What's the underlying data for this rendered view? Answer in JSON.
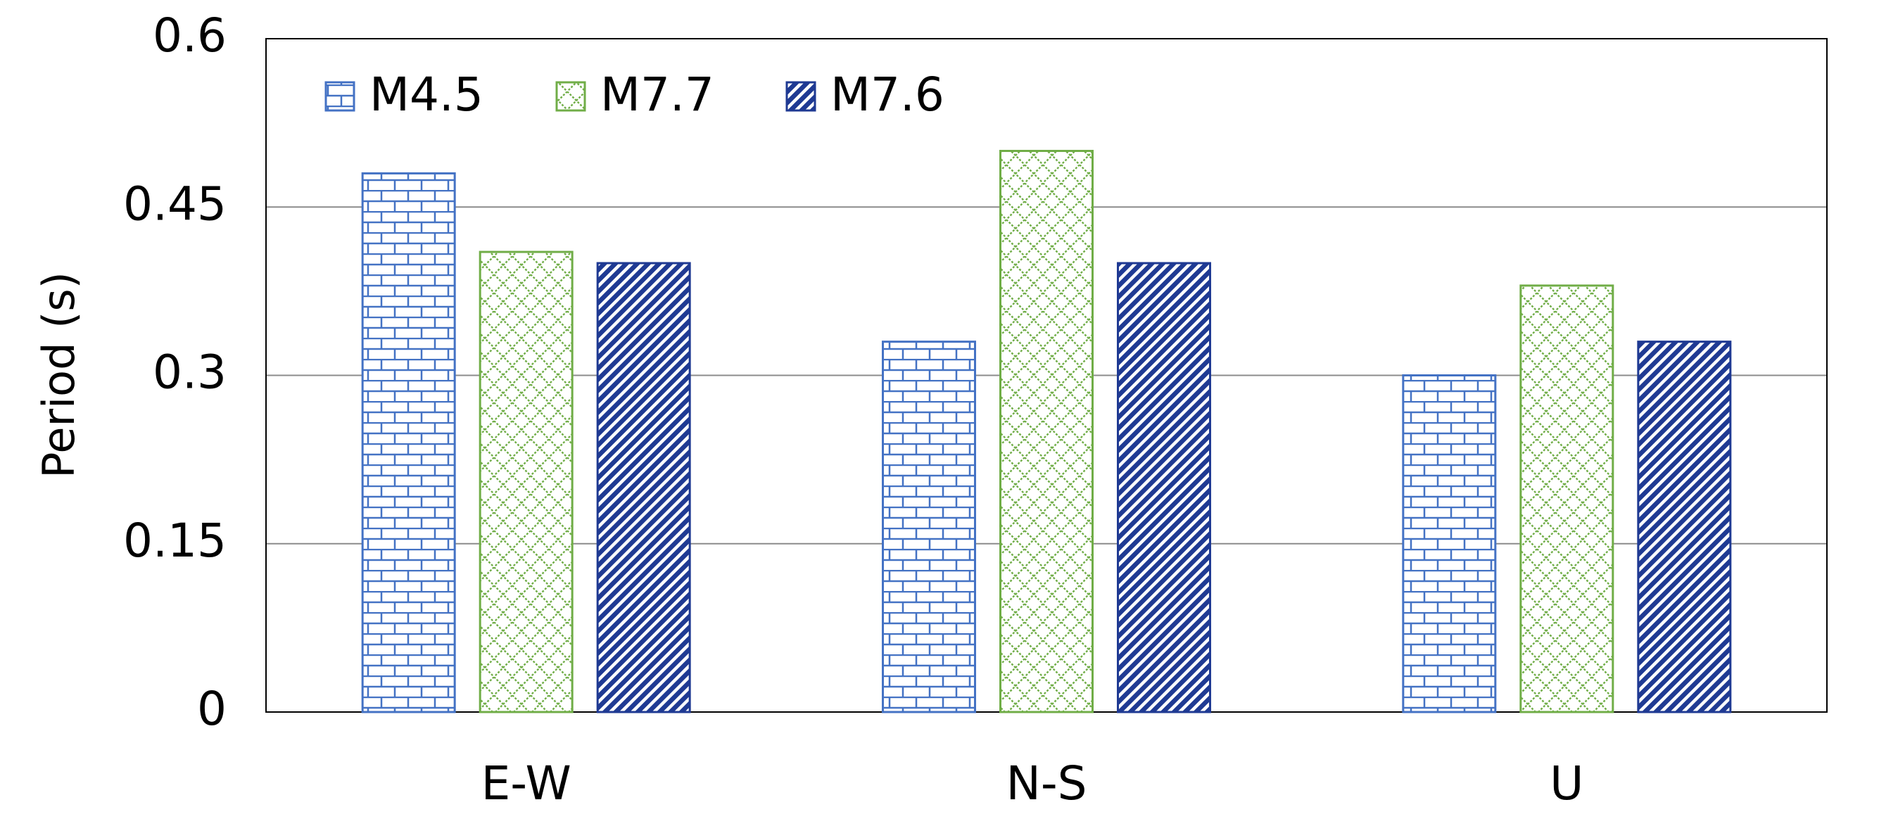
{
  "chart_data": {
    "type": "bar",
    "title": "",
    "xlabel": "",
    "ylabel": "Period (s)",
    "categories": [
      "E-W",
      "N-S",
      "U"
    ],
    "series": [
      {
        "name": "M4.5",
        "values": [
          0.48,
          0.33,
          0.3
        ],
        "color": "#4472C4",
        "pattern": "brick"
      },
      {
        "name": "M7.7",
        "values": [
          0.41,
          0.5,
          0.38
        ],
        "color": "#70AD47",
        "pattern": "diamond-cross"
      },
      {
        "name": "M7.6",
        "values": [
          0.4,
          0.4,
          0.33
        ],
        "color": "#1F3A93",
        "pattern": "diagonal"
      }
    ],
    "ylim": [
      0,
      0.6
    ],
    "yticks": [
      "0",
      "0.15",
      "0.3",
      "0.45",
      "0.6"
    ],
    "ytick_values": [
      0,
      0.15,
      0.3,
      0.45,
      0.6
    ],
    "grid": true,
    "legend": "top-left"
  }
}
